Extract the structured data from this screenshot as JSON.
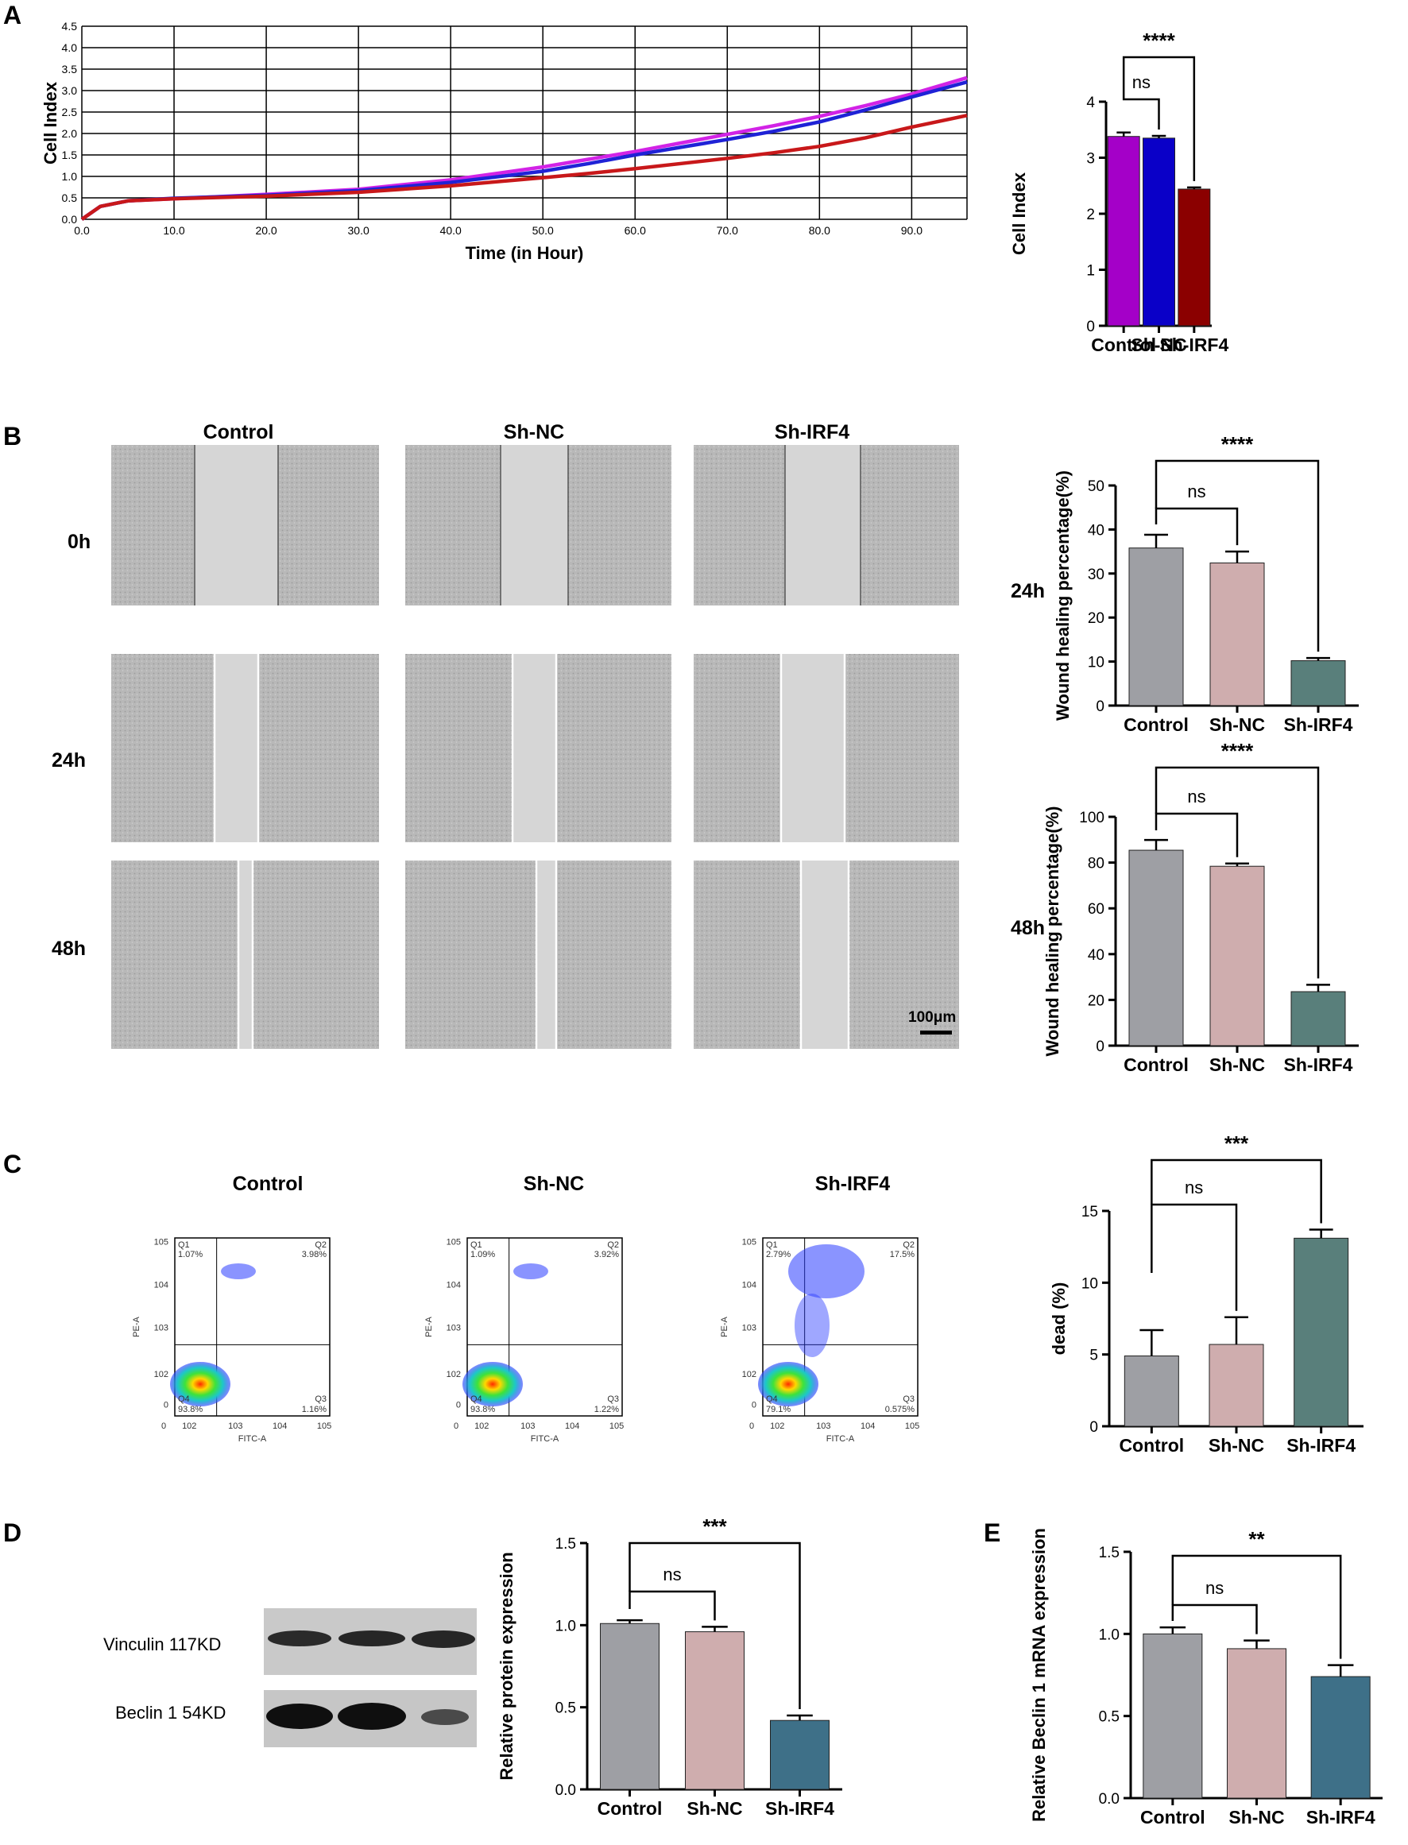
{
  "panels": {
    "A": "A",
    "B": "B",
    "C": "C",
    "D": "D",
    "E": "E"
  },
  "groups": [
    "Control",
    "Sh-NC",
    "Sh-IRF4"
  ],
  "colors": {
    "control_a": "#a400c8",
    "shnc_a": "#0a00c8",
    "shirf4_a": "#8b0000",
    "line_control": "#d223e6",
    "line_shnc": "#1f22d6",
    "line_shirf4": "#c8181a",
    "gray": "#9e9fa4",
    "pink": "#cfadae",
    "teal": "#597f7b",
    "blue": "#3e7088"
  },
  "panelB": {
    "row_labels": [
      "0h",
      "24h",
      "48h"
    ],
    "scale_bar": "100μm"
  },
  "panelC": {
    "flow": [
      {
        "q1": "1.07%",
        "q2": "3.98%",
        "q3": "1.16%",
        "q4": "93.8%"
      },
      {
        "q1": "1.09%",
        "q2": "3.92%",
        "q3": "1.22%",
        "q4": "93.8%"
      },
      {
        "q1": "2.79%",
        "q2": "17.5%",
        "q3": "0.575%",
        "q4": "79.1%"
      }
    ],
    "quad_names": [
      "Q1",
      "Q2",
      "Q3",
      "Q4"
    ],
    "x_axis": "FITC-A",
    "y_axis": "PE-A",
    "log_ticks": [
      "0",
      "10",
      "10",
      "10",
      "10",
      "10"
    ],
    "log_exps": [
      "",
      "2",
      "3",
      "4",
      "5"
    ]
  },
  "panelD": {
    "blots": [
      {
        "label": "Vinculin 117KD"
      },
      {
        "label": "Beclin 1 54KD"
      }
    ]
  },
  "chart_data": [
    {
      "id": "A-line",
      "type": "line",
      "title": "",
      "xlabel": "Time (in Hour)",
      "ylabel": "Cell Index",
      "xlim": [
        0,
        96
      ],
      "ylim": [
        0,
        4.5
      ],
      "xticks": [
        "0.0",
        "10.0",
        "20.0",
        "30.0",
        "40.0",
        "50.0",
        "60.0",
        "70.0",
        "80.0",
        "90.0"
      ],
      "yticks": [
        "0.0",
        "0.5",
        "1.0",
        "1.5",
        "2.0",
        "2.5",
        "3.0",
        "3.5",
        "4.0",
        "4.5"
      ],
      "grid": true,
      "series": [
        {
          "name": "Control",
          "x": [
            0,
            2,
            5,
            10,
            20,
            30,
            40,
            50,
            55,
            60,
            65,
            70,
            75,
            80,
            85,
            90,
            96
          ],
          "y": [
            0.0,
            0.3,
            0.43,
            0.48,
            0.58,
            0.7,
            0.92,
            1.22,
            1.4,
            1.58,
            1.78,
            1.98,
            2.18,
            2.4,
            2.65,
            2.92,
            3.3
          ]
        },
        {
          "name": "Sh-NC",
          "x": [
            0,
            2,
            5,
            10,
            20,
            30,
            40,
            50,
            55,
            60,
            65,
            70,
            75,
            80,
            85,
            90,
            96
          ],
          "y": [
            0.0,
            0.3,
            0.43,
            0.49,
            0.56,
            0.67,
            0.86,
            1.12,
            1.3,
            1.5,
            1.68,
            1.86,
            2.05,
            2.27,
            2.55,
            2.85,
            3.2
          ]
        },
        {
          "name": "Sh-IRF4",
          "x": [
            0,
            2,
            5,
            10,
            20,
            30,
            40,
            50,
            55,
            60,
            65,
            70,
            75,
            80,
            85,
            90,
            96
          ],
          "y": [
            0.0,
            0.3,
            0.43,
            0.48,
            0.54,
            0.63,
            0.78,
            0.97,
            1.07,
            1.18,
            1.3,
            1.42,
            1.55,
            1.7,
            1.9,
            2.15,
            2.42
          ]
        }
      ]
    },
    {
      "id": "A-bar",
      "type": "bar",
      "ylabel": "Cell Index",
      "categories": [
        "Control",
        "Sh-NC",
        "Sh-IRF4"
      ],
      "values": [
        3.38,
        3.35,
        2.44
      ],
      "errors": [
        0.07,
        0.04,
        0.03
      ],
      "ylim": [
        0,
        4
      ],
      "yticks": [
        "0",
        "1",
        "2",
        "3",
        "4"
      ],
      "comparisons": [
        {
          "from": 0,
          "to": 1,
          "label": "ns"
        },
        {
          "from": 0,
          "to": 2,
          "label": "****"
        }
      ]
    },
    {
      "id": "B-24h",
      "type": "bar",
      "row_label": "24h",
      "ylabel": "Wound healing percentage(%)",
      "categories": [
        "Control",
        "Sh-NC",
        "Sh-IRF4"
      ],
      "values": [
        35.8,
        32.4,
        10.2
      ],
      "errors": [
        3.0,
        2.6,
        0.6
      ],
      "ylim": [
        0,
        50
      ],
      "yticks": [
        "0",
        "10",
        "20",
        "30",
        "40",
        "50"
      ],
      "comparisons": [
        {
          "from": 0,
          "to": 1,
          "label": "ns"
        },
        {
          "from": 0,
          "to": 2,
          "label": "****"
        }
      ]
    },
    {
      "id": "B-48h",
      "type": "bar",
      "row_label": "48h",
      "ylabel": "Wound healing percentage(%)",
      "categories": [
        "Control",
        "Sh-NC",
        "Sh-IRF4"
      ],
      "values": [
        85.4,
        78.4,
        23.6
      ],
      "errors": [
        4.5,
        1.2,
        3.0
      ],
      "ylim": [
        0,
        100
      ],
      "yticks": [
        "0",
        "20",
        "40",
        "60",
        "80",
        "100"
      ],
      "comparisons": [
        {
          "from": 0,
          "to": 1,
          "label": "ns"
        },
        {
          "from": 0,
          "to": 2,
          "label": "****"
        }
      ]
    },
    {
      "id": "C-bar",
      "type": "bar",
      "ylabel": "dead (%)",
      "categories": [
        "Control",
        "Sh-NC",
        "Sh-IRF4"
      ],
      "values": [
        4.9,
        5.7,
        13.1
      ],
      "errors": [
        1.8,
        1.9,
        0.6
      ],
      "ylim": [
        0,
        15
      ],
      "yticks": [
        "0",
        "5",
        "10",
        "15"
      ],
      "comparisons": [
        {
          "from": 0,
          "to": 1,
          "label": "ns"
        },
        {
          "from": 0,
          "to": 2,
          "label": "***"
        }
      ]
    },
    {
      "id": "D-bar",
      "type": "bar",
      "ylabel": "Relative protein expression",
      "categories": [
        "Control",
        "Sh-NC",
        "Sh-IRF4"
      ],
      "values": [
        1.01,
        0.96,
        0.42
      ],
      "errors": [
        0.02,
        0.03,
        0.03
      ],
      "ylim": [
        0,
        1.5
      ],
      "yticks": [
        "0.0",
        "0.5",
        "1.0",
        "1.5"
      ],
      "comparisons": [
        {
          "from": 0,
          "to": 1,
          "label": "ns"
        },
        {
          "from": 0,
          "to": 2,
          "label": "***"
        }
      ]
    },
    {
      "id": "E-bar",
      "type": "bar",
      "ylabel": "Relative Beclin 1 mRNA  expression",
      "categories": [
        "Control",
        "Sh-NC",
        "Sh-IRF4"
      ],
      "values": [
        1.0,
        0.91,
        0.74
      ],
      "errors": [
        0.04,
        0.05,
        0.07
      ],
      "ylim": [
        0,
        1.5
      ],
      "yticks": [
        "0.0",
        "0.5",
        "1.0",
        "1.5"
      ],
      "comparisons": [
        {
          "from": 0,
          "to": 1,
          "label": "ns"
        },
        {
          "from": 0,
          "to": 2,
          "label": "**"
        }
      ]
    }
  ]
}
